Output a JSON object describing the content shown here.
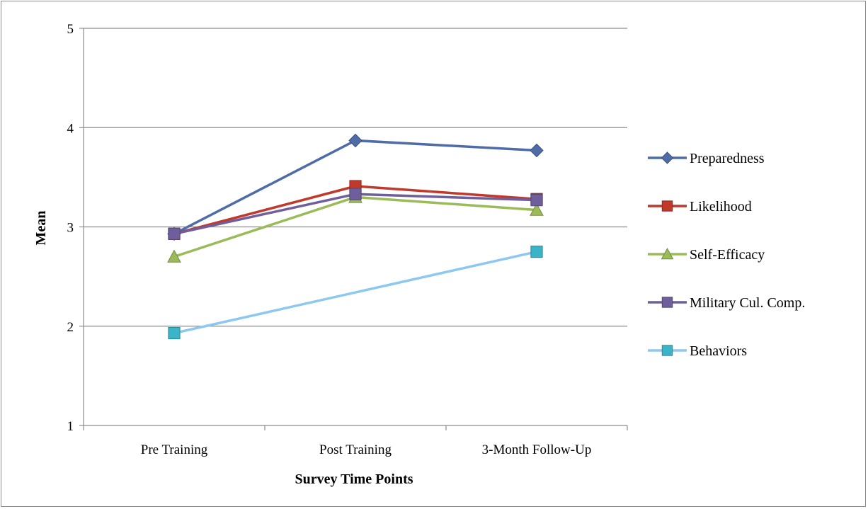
{
  "chart_data": {
    "type": "line",
    "title": "",
    "xlabel": "Survey Time Points",
    "ylabel": "Mean",
    "ylim": [
      1,
      5
    ],
    "yticks": [
      1,
      2,
      3,
      4,
      5
    ],
    "grid": true,
    "legend_position": "right",
    "categories": [
      "Pre Training",
      "Post Training",
      "3-Month Follow-Up"
    ],
    "series": [
      {
        "name": "Preparedness",
        "values": [
          2.93,
          3.87,
          3.77
        ],
        "color": "#4F6CA8",
        "marker": "diamond"
      },
      {
        "name": "Likelihood",
        "values": [
          2.93,
          3.41,
          3.28
        ],
        "color": "#C0392B",
        "marker": "square"
      },
      {
        "name": "Self-Efficacy",
        "values": [
          2.7,
          3.3,
          3.17
        ],
        "color": "#9BBB59",
        "marker": "triangle"
      },
      {
        "name": "Military Cul. Comp.",
        "values": [
          2.93,
          3.33,
          3.27
        ],
        "color": "#6E5E9C",
        "marker": "square"
      },
      {
        "name": "Behaviors",
        "values": [
          1.93,
          null,
          2.75
        ],
        "color": "#8CC8F0",
        "marker_color": "#3CB4C8",
        "marker": "square"
      }
    ]
  }
}
